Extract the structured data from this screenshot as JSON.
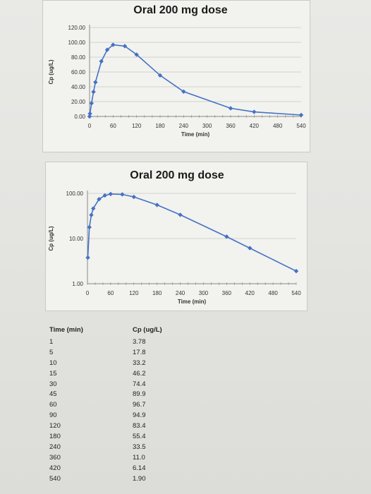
{
  "chart_data": [
    {
      "type": "line",
      "title": "Oral 200 mg dose",
      "xlabel": "Time (min)",
      "ylabel": "Cp (ug/L)",
      "xlim": [
        0,
        540
      ],
      "ylim": [
        0,
        120
      ],
      "xticks": [
        "0",
        "60",
        "120",
        "180",
        "240",
        "300",
        "360",
        "420",
        "480",
        "540"
      ],
      "yticks": [
        "0.00",
        "20.00",
        "40.00",
        "60.00",
        "80.00",
        "100.00",
        "120.00"
      ],
      "yscale": "linear",
      "grid": "horizontal",
      "series": [
        {
          "x": [
            0,
            1,
            5,
            10,
            15,
            30,
            45,
            60,
            90,
            120,
            180,
            240,
            360,
            420,
            540
          ],
          "y": [
            0,
            3.78,
            17.8,
            33.2,
            46.2,
            74.4,
            89.9,
            96.7,
            94.9,
            83.4,
            55.4,
            33.5,
            11.0,
            6.14,
            1.9
          ]
        }
      ],
      "color": "#4472c4"
    },
    {
      "type": "line",
      "title": "Oral 200 mg dose",
      "xlabel": "Time (min)",
      "ylabel": "Cp (ug/L)",
      "xlim": [
        0,
        540
      ],
      "ylim": [
        1,
        100
      ],
      "xticks": [
        "0",
        "60",
        "120",
        "180",
        "240",
        "300",
        "360",
        "420",
        "480",
        "540"
      ],
      "yticks": [
        "1.00",
        "10.00",
        "100.00"
      ],
      "yscale": "log",
      "grid": "horizontal",
      "series": [
        {
          "x": [
            1,
            5,
            10,
            15,
            30,
            45,
            60,
            90,
            120,
            180,
            240,
            360,
            420,
            540
          ],
          "y": [
            3.78,
            17.8,
            33.2,
            46.2,
            74.4,
            89.9,
            96.7,
            94.9,
            83.4,
            55.4,
            33.5,
            11.0,
            6.14,
            1.9
          ]
        }
      ],
      "color": "#4472c4"
    }
  ],
  "table": {
    "time_header": "Time (min)",
    "cp_header": "Cp (ug/L)",
    "time": [
      "1",
      "5",
      "10",
      "15",
      "30",
      "45",
      "60",
      "90",
      "120",
      "180",
      "240",
      "360",
      "420",
      "540"
    ],
    "cp": [
      "3.78",
      "17.8",
      "33.2",
      "46.2",
      "74.4",
      "89.9",
      "96.7",
      "94.9",
      "83.4",
      "55.4",
      "33.5",
      "11.0",
      "6.14",
      "1.90"
    ]
  }
}
